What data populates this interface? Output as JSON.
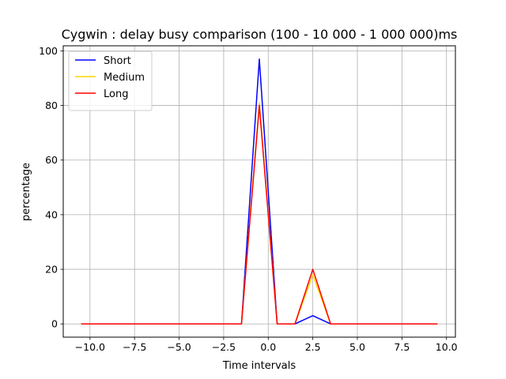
{
  "chart_data": {
    "type": "line",
    "title": "Cygwin : delay busy comparison (100 - 10 000 - 1 000 000)ms",
    "xlabel": "Time intervals",
    "ylabel": "percentage",
    "xlim": [
      -11.5,
      10.5
    ],
    "ylim": [
      -4.85,
      101.85
    ],
    "xticks": [
      -10.0,
      -7.5,
      -5.0,
      -2.5,
      0.0,
      2.5,
      5.0,
      7.5,
      10.0
    ],
    "xtick_labels": [
      "−10.0",
      "−7.5",
      "−5.0",
      "−2.5",
      "0.0",
      "2.5",
      "5.0",
      "7.5",
      "10.0"
    ],
    "yticks": [
      0,
      20,
      40,
      60,
      80,
      100
    ],
    "ytick_labels": [
      "0",
      "20",
      "40",
      "60",
      "80",
      "100"
    ],
    "grid": true,
    "legend": "top-left",
    "x": [
      -10.5,
      -9.5,
      -8.5,
      -7.5,
      -6.5,
      -5.5,
      -4.5,
      -3.5,
      -2.5,
      -1.5,
      -0.5,
      0.5,
      1.5,
      2.5,
      3.5,
      4.5,
      5.5,
      6.5,
      7.5,
      8.5,
      9.5
    ],
    "series": [
      {
        "name": "Short",
        "color": "#0000ff",
        "values": [
          0,
          0,
          0,
          0,
          0,
          0,
          0,
          0,
          0,
          0,
          97,
          0,
          0,
          3,
          0,
          0,
          0,
          0,
          0,
          0,
          0
        ]
      },
      {
        "name": "Medium",
        "color": "#ffd700",
        "values": [
          0,
          0,
          0,
          0,
          0,
          0,
          0,
          0,
          0,
          0,
          81,
          0,
          0,
          18,
          0,
          0,
          0,
          0,
          0,
          0,
          0
        ]
      },
      {
        "name": "Long",
        "color": "#ff0000",
        "values": [
          0,
          0,
          0,
          0,
          0,
          0,
          0,
          0,
          0,
          0,
          80,
          0,
          0,
          20,
          0,
          0,
          0,
          0,
          0,
          0,
          0
        ]
      }
    ]
  }
}
